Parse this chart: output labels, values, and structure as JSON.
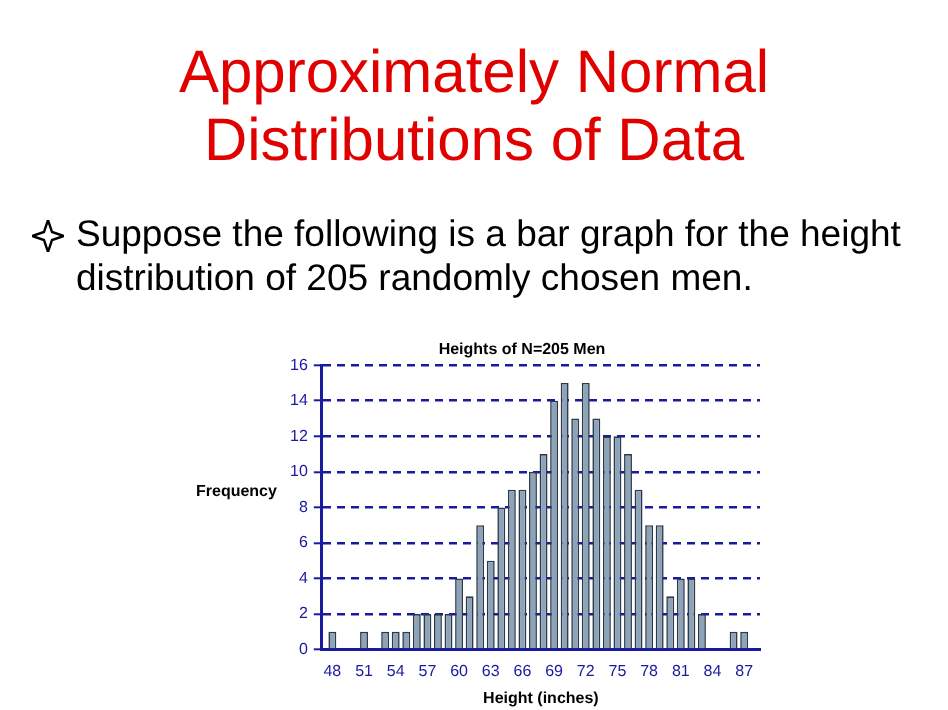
{
  "chart_data": {
    "type": "histogram",
    "title": "Heights of N=205 Men",
    "xlabel": "Height (inches)",
    "ylabel": "Frequency",
    "annotations": [
      "Approximately Normal Distributions of Data",
      "Suppose the following is a bar graph for the height distribution of 205 randomly chosen men."
    ],
    "bins": [
      47.5,
      48.5,
      49.5,
      50.5,
      51.5,
      52.5,
      53.5,
      54.5,
      55.5,
      56.5,
      57.5,
      58.5,
      59.5,
      60.5,
      61.5,
      62.5,
      63.5,
      64.5,
      65.5,
      66.5,
      67.5,
      68.5,
      69.5,
      70.5,
      71.5,
      72.5,
      73.5,
      74.5,
      75.5,
      76.5,
      77.5,
      78.5,
      79.5,
      80.5,
      81.5,
      82.5,
      83.5,
      84.5,
      85.5,
      86.5,
      87.5
    ],
    "values": [
      1,
      0,
      0,
      1,
      0,
      1,
      1,
      1,
      2,
      2,
      2,
      2,
      4,
      3,
      7,
      5,
      8,
      9,
      9,
      10,
      11,
      14,
      15,
      13,
      15,
      13,
      12,
      12,
      11,
      9,
      7,
      7,
      3,
      4,
      4,
      2,
      0,
      0,
      1,
      1
    ],
    "color": "#8fa3b8",
    "xlim": [
      47,
      88.5
    ],
    "xticks": [
      48,
      51,
      54,
      57,
      60,
      63,
      66,
      69,
      72,
      75,
      78,
      81,
      84,
      87
    ],
    "ylim": [
      0,
      16
    ],
    "yticks": [
      0,
      2,
      4,
      6,
      8,
      10,
      12,
      14,
      16
    ],
    "grid": "y",
    "line_style": "dashed"
  }
}
